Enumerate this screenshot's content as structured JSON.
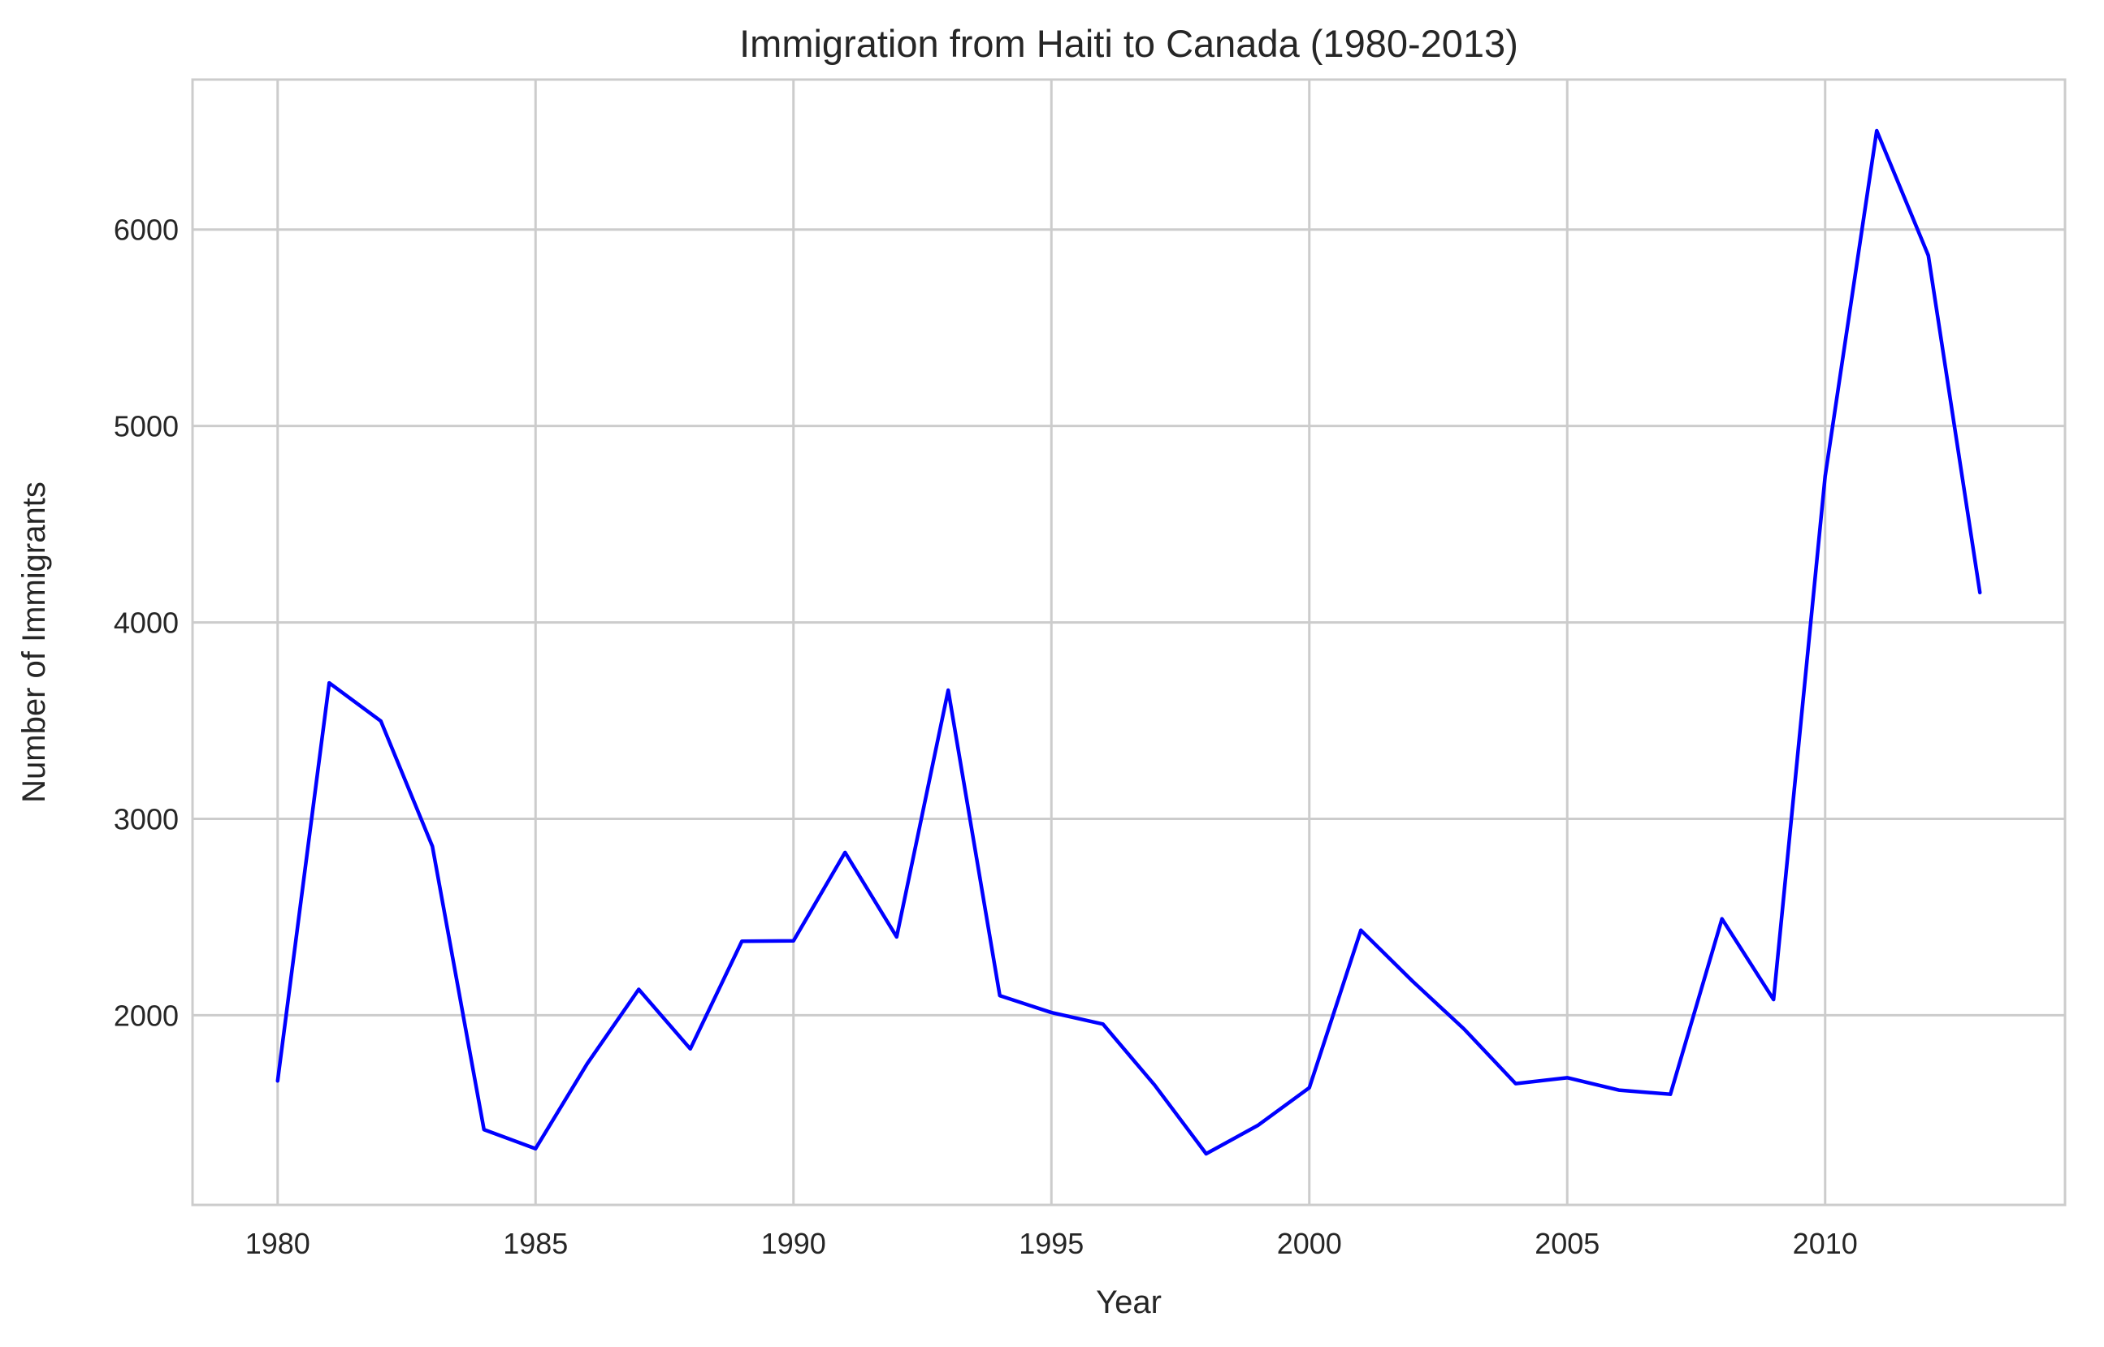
{
  "chart_data": {
    "type": "line",
    "title": "Immigration from Haiti to Canada (1980-2013)",
    "xlabel": "Year",
    "ylabel": "Number of Immigrants",
    "x": [
      1980,
      1981,
      1982,
      1983,
      1984,
      1985,
      1986,
      1987,
      1988,
      1989,
      1990,
      1991,
      1992,
      1993,
      1994,
      1995,
      1996,
      1997,
      1998,
      1999,
      2000,
      2001,
      2002,
      2003,
      2004,
      2005,
      2006,
      2007,
      2008,
      2009,
      2010,
      2011,
      2012,
      2013
    ],
    "series": [
      {
        "values": [
          1666,
          3692,
          3498,
          2860,
          1418,
          1321,
          1753,
          2132,
          1829,
          2377,
          2379,
          2829,
          2399,
          3655,
          2100,
          2014,
          1955,
          1645,
          1295,
          1439,
          1631,
          2433,
          2174,
          1930,
          1652,
          1682,
          1619,
          1598,
          2491,
          2080,
          4744,
          6503,
          5868,
          4152
        ],
        "color": "#0000ff"
      }
    ],
    "xticks": [
      1980,
      1985,
      1990,
      1995,
      2000,
      2005,
      2010
    ],
    "yticks": [
      2000,
      3000,
      4000,
      5000,
      6000
    ],
    "xlim": [
      1978.35,
      2014.65
    ],
    "ylim": [
      1034.6,
      6763.4
    ],
    "grid": true,
    "legend": "none"
  }
}
